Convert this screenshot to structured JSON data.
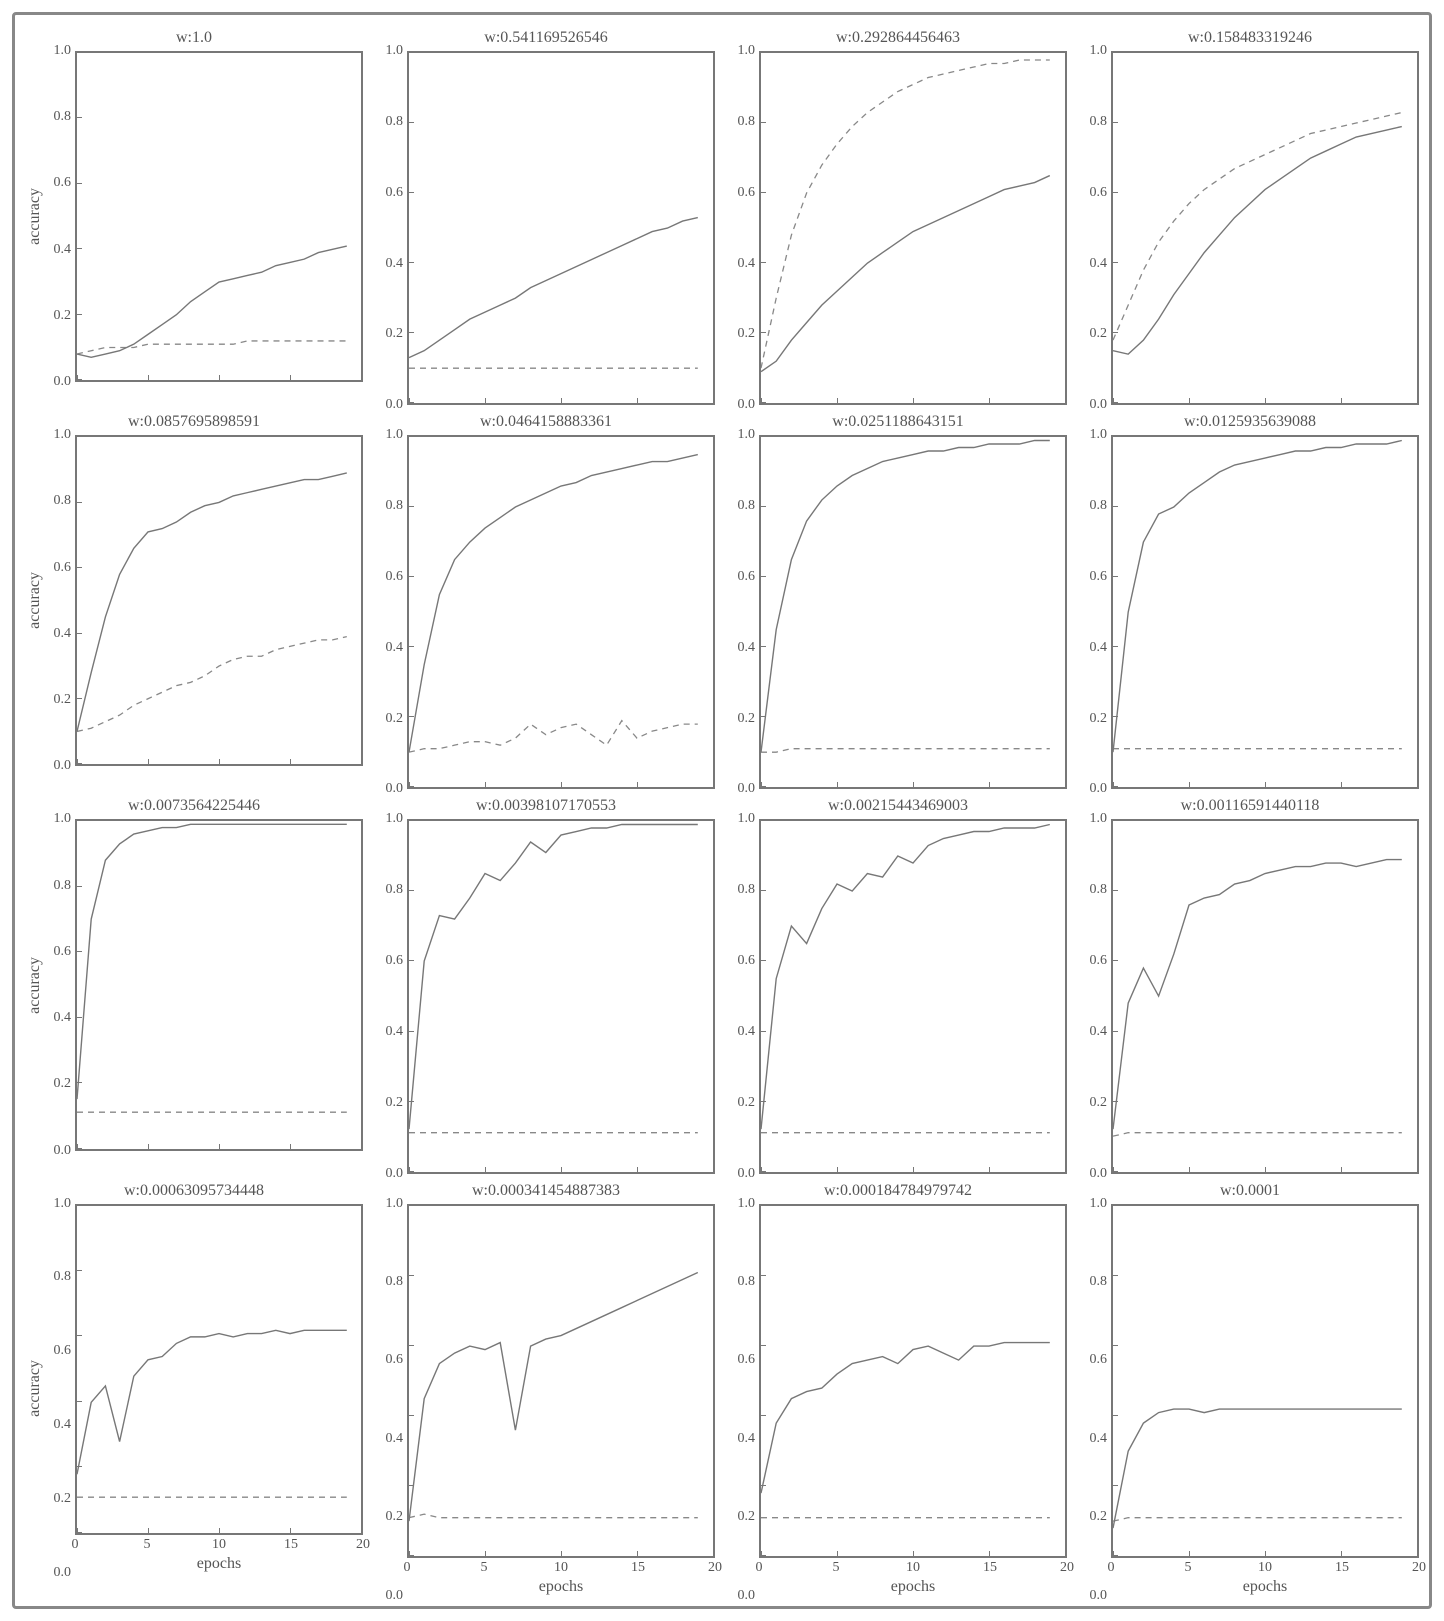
{
  "figure": {
    "rows": 4,
    "cols": 4,
    "background_color": "#ffffff",
    "frame_border_color": "#888888",
    "frame_border_width": 3,
    "font_family": "Times New Roman",
    "text_color": "#555555",
    "axis_border_color": "#777777",
    "axis_border_width": 2,
    "solid_line_color": "#777777",
    "dashed_line_color": "#888888",
    "solid_line_width": 1.4,
    "dashed_line_width": 1.3,
    "dash_pattern": "6 5",
    "ylabel": "accuracy",
    "xlabel": "epochs",
    "xlim": [
      0,
      20
    ],
    "ylim": [
      0.0,
      1.0
    ],
    "xticks": [
      0,
      5,
      10,
      15,
      20
    ],
    "yticks_labels": [
      "0.0",
      "0.2",
      "0.4",
      "0.6",
      "0.8",
      "1.0"
    ],
    "yticks_vals": [
      0.0,
      0.2,
      0.4,
      0.6,
      0.8,
      1.0
    ],
    "title_fontsize": 16,
    "label_fontsize": 16,
    "tick_fontsize": 14
  },
  "panels": [
    {
      "title": "w:1.0",
      "solid": [
        0.08,
        0.07,
        0.08,
        0.09,
        0.11,
        0.14,
        0.17,
        0.2,
        0.24,
        0.27,
        0.3,
        0.31,
        0.32,
        0.33,
        0.35,
        0.36,
        0.37,
        0.39,
        0.4,
        0.41
      ],
      "dashed": [
        0.08,
        0.09,
        0.1,
        0.1,
        0.1,
        0.11,
        0.11,
        0.11,
        0.11,
        0.11,
        0.11,
        0.11,
        0.12,
        0.12,
        0.12,
        0.12,
        0.12,
        0.12,
        0.12,
        0.12
      ]
    },
    {
      "title": "w:0.541169526546",
      "solid": [
        0.13,
        0.15,
        0.18,
        0.21,
        0.24,
        0.26,
        0.28,
        0.3,
        0.33,
        0.35,
        0.37,
        0.39,
        0.41,
        0.43,
        0.45,
        0.47,
        0.49,
        0.5,
        0.52,
        0.53
      ],
      "dashed": [
        0.1,
        0.1,
        0.1,
        0.1,
        0.1,
        0.1,
        0.1,
        0.1,
        0.1,
        0.1,
        0.1,
        0.1,
        0.1,
        0.1,
        0.1,
        0.1,
        0.1,
        0.1,
        0.1,
        0.1
      ]
    },
    {
      "title": "w:0.292864456463",
      "solid": [
        0.09,
        0.12,
        0.18,
        0.23,
        0.28,
        0.32,
        0.36,
        0.4,
        0.43,
        0.46,
        0.49,
        0.51,
        0.53,
        0.55,
        0.57,
        0.59,
        0.61,
        0.62,
        0.63,
        0.65
      ],
      "dashed": [
        0.1,
        0.3,
        0.48,
        0.6,
        0.68,
        0.74,
        0.79,
        0.83,
        0.86,
        0.89,
        0.91,
        0.93,
        0.94,
        0.95,
        0.96,
        0.97,
        0.97,
        0.98,
        0.98,
        0.98
      ]
    },
    {
      "title": "w:0.158483319246",
      "solid": [
        0.15,
        0.14,
        0.18,
        0.24,
        0.31,
        0.37,
        0.43,
        0.48,
        0.53,
        0.57,
        0.61,
        0.64,
        0.67,
        0.7,
        0.72,
        0.74,
        0.76,
        0.77,
        0.78,
        0.79
      ],
      "dashed": [
        0.18,
        0.28,
        0.38,
        0.46,
        0.52,
        0.57,
        0.61,
        0.64,
        0.67,
        0.69,
        0.71,
        0.73,
        0.75,
        0.77,
        0.78,
        0.79,
        0.8,
        0.81,
        0.82,
        0.83
      ]
    },
    {
      "title": "w:0.0857695898591",
      "solid": [
        0.1,
        0.28,
        0.45,
        0.58,
        0.66,
        0.71,
        0.72,
        0.74,
        0.77,
        0.79,
        0.8,
        0.82,
        0.83,
        0.84,
        0.85,
        0.86,
        0.87,
        0.87,
        0.88,
        0.89
      ],
      "dashed": [
        0.1,
        0.11,
        0.13,
        0.15,
        0.18,
        0.2,
        0.22,
        0.24,
        0.25,
        0.27,
        0.3,
        0.32,
        0.33,
        0.33,
        0.35,
        0.36,
        0.37,
        0.38,
        0.38,
        0.39
      ]
    },
    {
      "title": "w:0.0464158883361",
      "solid": [
        0.1,
        0.35,
        0.55,
        0.65,
        0.7,
        0.74,
        0.77,
        0.8,
        0.82,
        0.84,
        0.86,
        0.87,
        0.89,
        0.9,
        0.91,
        0.92,
        0.93,
        0.93,
        0.94,
        0.95
      ],
      "dashed": [
        0.1,
        0.11,
        0.11,
        0.12,
        0.13,
        0.13,
        0.12,
        0.14,
        0.18,
        0.15,
        0.17,
        0.18,
        0.15,
        0.12,
        0.19,
        0.14,
        0.16,
        0.17,
        0.18,
        0.18
      ]
    },
    {
      "title": "w:0.0251188643151",
      "solid": [
        0.1,
        0.45,
        0.65,
        0.76,
        0.82,
        0.86,
        0.89,
        0.91,
        0.93,
        0.94,
        0.95,
        0.96,
        0.96,
        0.97,
        0.97,
        0.98,
        0.98,
        0.98,
        0.99,
        0.99
      ],
      "dashed": [
        0.1,
        0.1,
        0.11,
        0.11,
        0.11,
        0.11,
        0.11,
        0.11,
        0.11,
        0.11,
        0.11,
        0.11,
        0.11,
        0.11,
        0.11,
        0.11,
        0.11,
        0.11,
        0.11,
        0.11
      ]
    },
    {
      "title": "w:0.0125935639088",
      "solid": [
        0.1,
        0.5,
        0.7,
        0.78,
        0.8,
        0.84,
        0.87,
        0.9,
        0.92,
        0.93,
        0.94,
        0.95,
        0.96,
        0.96,
        0.97,
        0.97,
        0.98,
        0.98,
        0.98,
        0.99
      ],
      "dashed": [
        0.11,
        0.11,
        0.11,
        0.11,
        0.11,
        0.11,
        0.11,
        0.11,
        0.11,
        0.11,
        0.11,
        0.11,
        0.11,
        0.11,
        0.11,
        0.11,
        0.11,
        0.11,
        0.11,
        0.11
      ]
    },
    {
      "title": "w:0.0073564225446",
      "solid": [
        0.15,
        0.7,
        0.88,
        0.93,
        0.96,
        0.97,
        0.98,
        0.98,
        0.99,
        0.99,
        0.99,
        0.99,
        0.99,
        0.99,
        0.99,
        0.99,
        0.99,
        0.99,
        0.99,
        0.99
      ],
      "dashed": [
        0.11,
        0.11,
        0.11,
        0.11,
        0.11,
        0.11,
        0.11,
        0.11,
        0.11,
        0.11,
        0.11,
        0.11,
        0.11,
        0.11,
        0.11,
        0.11,
        0.11,
        0.11,
        0.11,
        0.11
      ]
    },
    {
      "title": "w:0.00398107170553",
      "solid": [
        0.12,
        0.6,
        0.73,
        0.72,
        0.78,
        0.85,
        0.83,
        0.88,
        0.94,
        0.91,
        0.96,
        0.97,
        0.98,
        0.98,
        0.99,
        0.99,
        0.99,
        0.99,
        0.99,
        0.99
      ],
      "dashed": [
        0.11,
        0.11,
        0.11,
        0.11,
        0.11,
        0.11,
        0.11,
        0.11,
        0.11,
        0.11,
        0.11,
        0.11,
        0.11,
        0.11,
        0.11,
        0.11,
        0.11,
        0.11,
        0.11,
        0.11
      ]
    },
    {
      "title": "w:0.00215443469003",
      "solid": [
        0.12,
        0.55,
        0.7,
        0.65,
        0.75,
        0.82,
        0.8,
        0.85,
        0.84,
        0.9,
        0.88,
        0.93,
        0.95,
        0.96,
        0.97,
        0.97,
        0.98,
        0.98,
        0.98,
        0.99
      ],
      "dashed": [
        0.11,
        0.11,
        0.11,
        0.11,
        0.11,
        0.11,
        0.11,
        0.11,
        0.11,
        0.11,
        0.11,
        0.11,
        0.11,
        0.11,
        0.11,
        0.11,
        0.11,
        0.11,
        0.11,
        0.11
      ]
    },
    {
      "title": "w:0.00116591440118",
      "solid": [
        0.12,
        0.48,
        0.58,
        0.5,
        0.62,
        0.76,
        0.78,
        0.79,
        0.82,
        0.83,
        0.85,
        0.86,
        0.87,
        0.87,
        0.88,
        0.88,
        0.87,
        0.88,
        0.89,
        0.89
      ],
      "dashed": [
        0.1,
        0.11,
        0.11,
        0.11,
        0.11,
        0.11,
        0.11,
        0.11,
        0.11,
        0.11,
        0.11,
        0.11,
        0.11,
        0.11,
        0.11,
        0.11,
        0.11,
        0.11,
        0.11,
        0.11
      ]
    },
    {
      "title": "w:0.00063095734448",
      "solid": [
        0.18,
        0.4,
        0.45,
        0.28,
        0.48,
        0.53,
        0.54,
        0.58,
        0.6,
        0.6,
        0.61,
        0.6,
        0.61,
        0.61,
        0.62,
        0.61,
        0.62,
        0.62,
        0.62,
        0.62
      ],
      "dashed": [
        0.11,
        0.11,
        0.11,
        0.11,
        0.11,
        0.11,
        0.11,
        0.11,
        0.11,
        0.11,
        0.11,
        0.11,
        0.11,
        0.11,
        0.11,
        0.11,
        0.11,
        0.11,
        0.11,
        0.11
      ]
    },
    {
      "title": "w:0.000341454887383",
      "solid": [
        0.1,
        0.45,
        0.55,
        0.58,
        0.6,
        0.59,
        0.61,
        0.36,
        0.6,
        0.62,
        0.63,
        0.65,
        0.67,
        0.69,
        0.71,
        0.73,
        0.75,
        0.77,
        0.79,
        0.81
      ],
      "dashed": [
        0.11,
        0.12,
        0.11,
        0.11,
        0.11,
        0.11,
        0.11,
        0.11,
        0.11,
        0.11,
        0.11,
        0.11,
        0.11,
        0.11,
        0.11,
        0.11,
        0.11,
        0.11,
        0.11,
        0.11
      ]
    },
    {
      "title": "w:0.000184784979742",
      "solid": [
        0.18,
        0.38,
        0.45,
        0.47,
        0.48,
        0.52,
        0.55,
        0.56,
        0.57,
        0.55,
        0.59,
        0.6,
        0.58,
        0.56,
        0.6,
        0.6,
        0.61,
        0.61,
        0.61,
        0.61
      ],
      "dashed": [
        0.11,
        0.11,
        0.11,
        0.11,
        0.11,
        0.11,
        0.11,
        0.11,
        0.11,
        0.11,
        0.11,
        0.11,
        0.11,
        0.11,
        0.11,
        0.11,
        0.11,
        0.11,
        0.11,
        0.11
      ]
    },
    {
      "title": "w:0.0001",
      "solid": [
        0.08,
        0.3,
        0.38,
        0.41,
        0.42,
        0.42,
        0.41,
        0.42,
        0.42,
        0.42,
        0.42,
        0.42,
        0.42,
        0.42,
        0.42,
        0.42,
        0.42,
        0.42,
        0.42,
        0.42
      ],
      "dashed": [
        0.1,
        0.11,
        0.11,
        0.11,
        0.11,
        0.11,
        0.11,
        0.11,
        0.11,
        0.11,
        0.11,
        0.11,
        0.11,
        0.11,
        0.11,
        0.11,
        0.11,
        0.11,
        0.11,
        0.11
      ]
    }
  ]
}
